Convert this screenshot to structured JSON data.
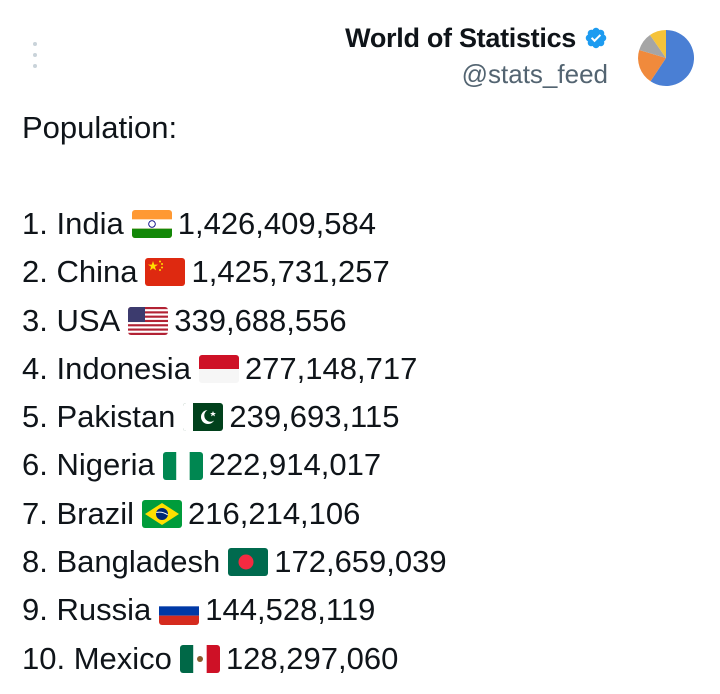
{
  "header": {
    "display_name": "World of Statistics",
    "handle": "@stats_feed",
    "verified_icon": "verified-badge-icon",
    "menu_icon": "more-vertical-icon",
    "avatar": "pie-chart-avatar"
  },
  "post": {
    "heading": "Population:",
    "items": [
      {
        "rank": "1.",
        "country": "India",
        "flag": "india-flag-icon",
        "population": "1,426,409,584"
      },
      {
        "rank": "2.",
        "country": "China",
        "flag": "china-flag-icon",
        "population": "1,425,731,257"
      },
      {
        "rank": "3.",
        "country": "USA",
        "flag": "usa-flag-icon",
        "population": "339,688,556"
      },
      {
        "rank": "4.",
        "country": "Indonesia",
        "flag": "indonesia-flag-icon",
        "population": "277,148,717"
      },
      {
        "rank": "5.",
        "country": "Pakistan",
        "flag": "pakistan-flag-icon",
        "population": "239,693,115"
      },
      {
        "rank": "6.",
        "country": "Nigeria",
        "flag": "nigeria-flag-icon",
        "population": "222,914,017"
      },
      {
        "rank": "7.",
        "country": "Brazil",
        "flag": "brazil-flag-icon",
        "population": "216,214,106"
      },
      {
        "rank": "8.",
        "country": "Bangladesh",
        "flag": "bangladesh-flag-icon",
        "population": "172,659,039"
      },
      {
        "rank": "9.",
        "country": "Russia",
        "flag": "russia-flag-icon",
        "population": "144,528,119"
      },
      {
        "rank": "10.",
        "country": "Mexico",
        "flag": "mexico-flag-icon",
        "population": "128,297,060"
      }
    ]
  },
  "colors": {
    "text": "#0f1419",
    "handle": "#536471",
    "verified": "#1d9bf0",
    "avatar_blue": "#4a7fd4",
    "avatar_orange": "#f08a3c",
    "avatar_yellow": "#f5c33b",
    "avatar_gray": "#a5a5a5"
  }
}
